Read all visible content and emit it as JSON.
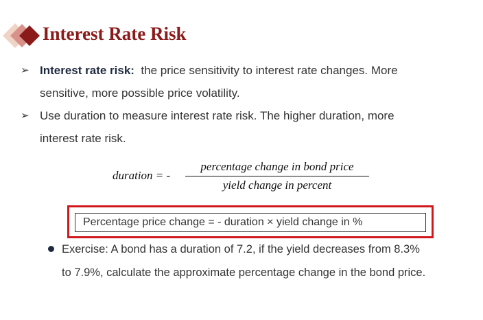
{
  "header": {
    "title": "Interest Rate Risk",
    "accent_color": "#8b1a1a",
    "icon": "diamond-icon"
  },
  "bullets": [
    {
      "lead": "Interest rate risk:",
      "line1": "the price sensitivity to interest rate changes. More",
      "line2": "sensitive, more possible price volatility."
    },
    {
      "line1": "Use duration to measure interest rate risk. The higher duration, more",
      "line2": "interest rate risk."
    }
  ],
  "formula": {
    "lhs": "duration = -",
    "numerator": "percentage change in bond  price",
    "denominator": "yield change in  percent"
  },
  "highlight": {
    "text": "Percentage price change = - duration × yield change in %",
    "border_color": "#d0181b"
  },
  "exercise": {
    "line1": "Exercise:  A bond has a duration of 7.2, if the yield decreases from 8.3%",
    "line2": "to 7.9%, calculate the approximate percentage change in the bond price."
  }
}
